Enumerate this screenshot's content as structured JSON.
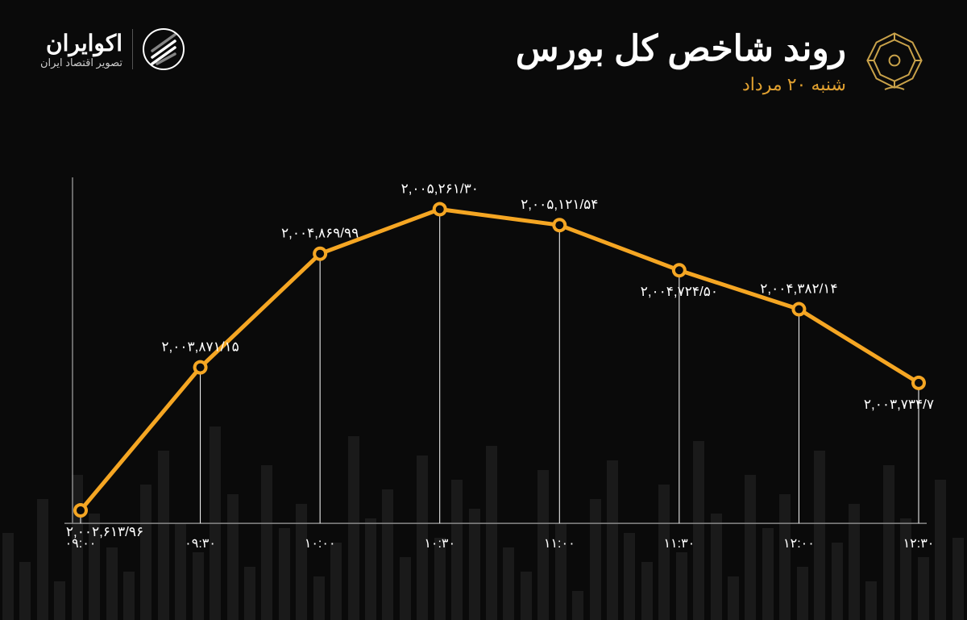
{
  "header": {
    "title": "روند شاخص کل بورس",
    "subtitle": "شنبه ۲۰ مرداد",
    "brand_name": "اکوایران",
    "brand_tagline": "تصویر اقتصاد ایران"
  },
  "chart": {
    "type": "line",
    "line_color": "#f5a623",
    "line_width": 5,
    "marker_radius_outer": 9,
    "marker_radius_inner": 5,
    "marker_fill": "#f5a623",
    "marker_inner_fill": "#0a0a0a",
    "background_color": "#0a0a0a",
    "bg_bar_color": "#1a1a1a",
    "axis_color": "#888888",
    "drop_line_color": "#ffffff",
    "title_fontsize": 44,
    "subtitle_fontsize": 22,
    "subtitle_color": "#e0a030",
    "label_fontsize": 17,
    "xlabel_fontsize": 16,
    "text_color": "#ffffff",
    "y_min": 2002500,
    "y_max": 2005400,
    "points": [
      {
        "x_label": "۰۹:۰۰",
        "value": 2002613.96,
        "value_label": "۲,۰۰۲,۶۱۳/۹۶",
        "label_pos": "below"
      },
      {
        "x_label": "۰۹:۳۰",
        "value": 2003871.15,
        "value_label": "۲,۰۰۳,۸۷۱/۱۵",
        "label_pos": "above"
      },
      {
        "x_label": "۱۰:۰۰",
        "value": 2004869.99,
        "value_label": "۲,۰۰۴,۸۶۹/۹۹",
        "label_pos": "above"
      },
      {
        "x_label": "۱۰:۳۰",
        "value": 2005261.3,
        "value_label": "۲,۰۰۵,۲۶۱/۳۰",
        "label_pos": "above"
      },
      {
        "x_label": "۱۱:۰۰",
        "value": 2005121.54,
        "value_label": "۲,۰۰۵,۱۲۱/۵۴",
        "label_pos": "above"
      },
      {
        "x_label": "۱۱:۳۰",
        "value": 2004724.5,
        "value_label": "۲,۰۰۴,۷۲۴/۵۰",
        "label_pos": "below"
      },
      {
        "x_label": "۱۲:۰۰",
        "value": 2004382.14,
        "value_label": "۲,۰۰۴,۳۸۲/۱۴",
        "label_pos": "above"
      },
      {
        "x_label": "۱۲:۳۰",
        "value": 2003734.71,
        "value_label": "۲,۰۰۳,۷۳۴/۷۱",
        "label_pos": "below"
      }
    ]
  },
  "bg_bars_heights_pct": [
    18,
    12,
    25,
    8,
    30,
    22,
    15,
    10,
    28,
    35,
    20,
    14,
    40,
    26,
    11,
    32,
    19,
    24,
    9,
    16,
    38,
    21,
    27,
    13,
    34,
    17,
    29,
    23,
    36,
    15,
    10,
    31,
    20,
    6,
    25,
    33,
    18,
    12,
    28,
    14,
    37,
    22,
    9,
    30,
    19,
    26,
    11,
    35,
    16,
    24,
    8,
    32,
    21,
    13,
    29,
    17
  ]
}
